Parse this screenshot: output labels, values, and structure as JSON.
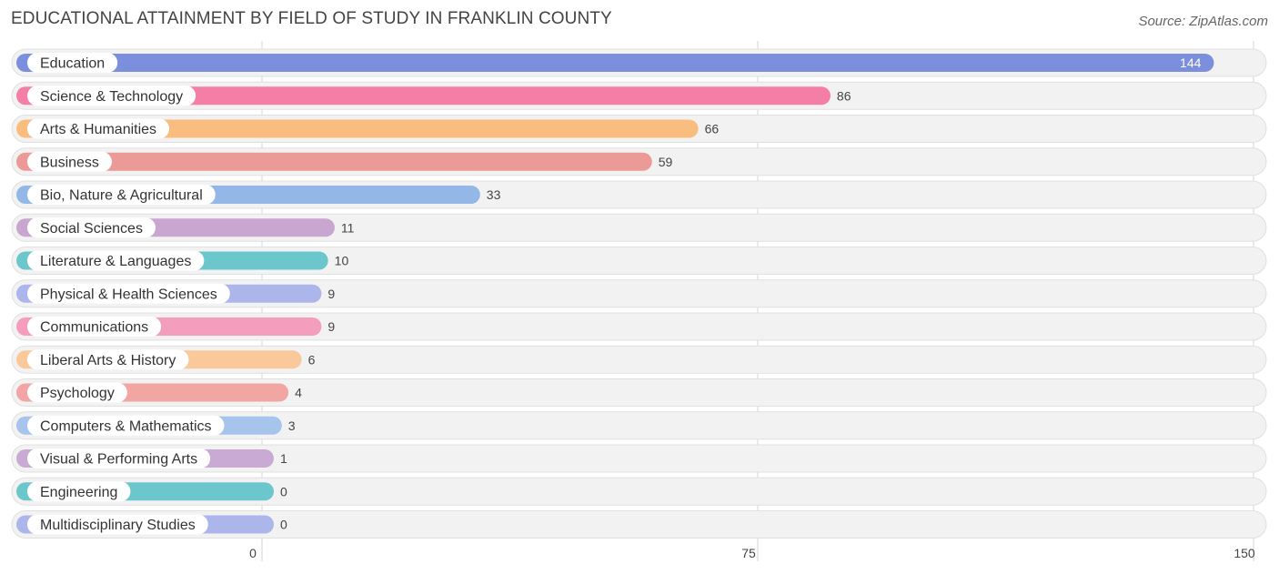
{
  "title": "EDUCATIONAL ATTAINMENT BY FIELD OF STUDY IN FRANKLIN COUNTY",
  "source": "Source: ZipAtlas.com",
  "chart_data": {
    "type": "bar",
    "orientation": "horizontal",
    "title": "EDUCATIONAL ATTAINMENT BY FIELD OF STUDY IN FRANKLIN COUNTY",
    "xlim": [
      0,
      150
    ],
    "xticks": [
      0,
      75,
      150
    ],
    "grid": true,
    "categories": [
      "Education",
      "Science & Technology",
      "Arts & Humanities",
      "Business",
      "Bio, Nature & Agricultural",
      "Social Sciences",
      "Literature & Languages",
      "Physical & Health Sciences",
      "Communications",
      "Liberal Arts & History",
      "Psychology",
      "Computers & Mathematics",
      "Visual & Performing Arts",
      "Engineering",
      "Multidisciplinary Studies"
    ],
    "values": [
      144,
      86,
      66,
      59,
      33,
      11,
      10,
      9,
      9,
      6,
      4,
      3,
      1,
      0,
      0
    ],
    "colors": [
      "#7b8fdc",
      "#f47ea5",
      "#f9bd80",
      "#ec9a97",
      "#93b7e6",
      "#c8a6cf",
      "#6cc7cc",
      "#adb6ea",
      "#f49dbc",
      "#f9c99c",
      "#f1a6a4",
      "#a6c4ec",
      "#c9aad4",
      "#6cc7cc",
      "#adb6ea"
    ]
  }
}
